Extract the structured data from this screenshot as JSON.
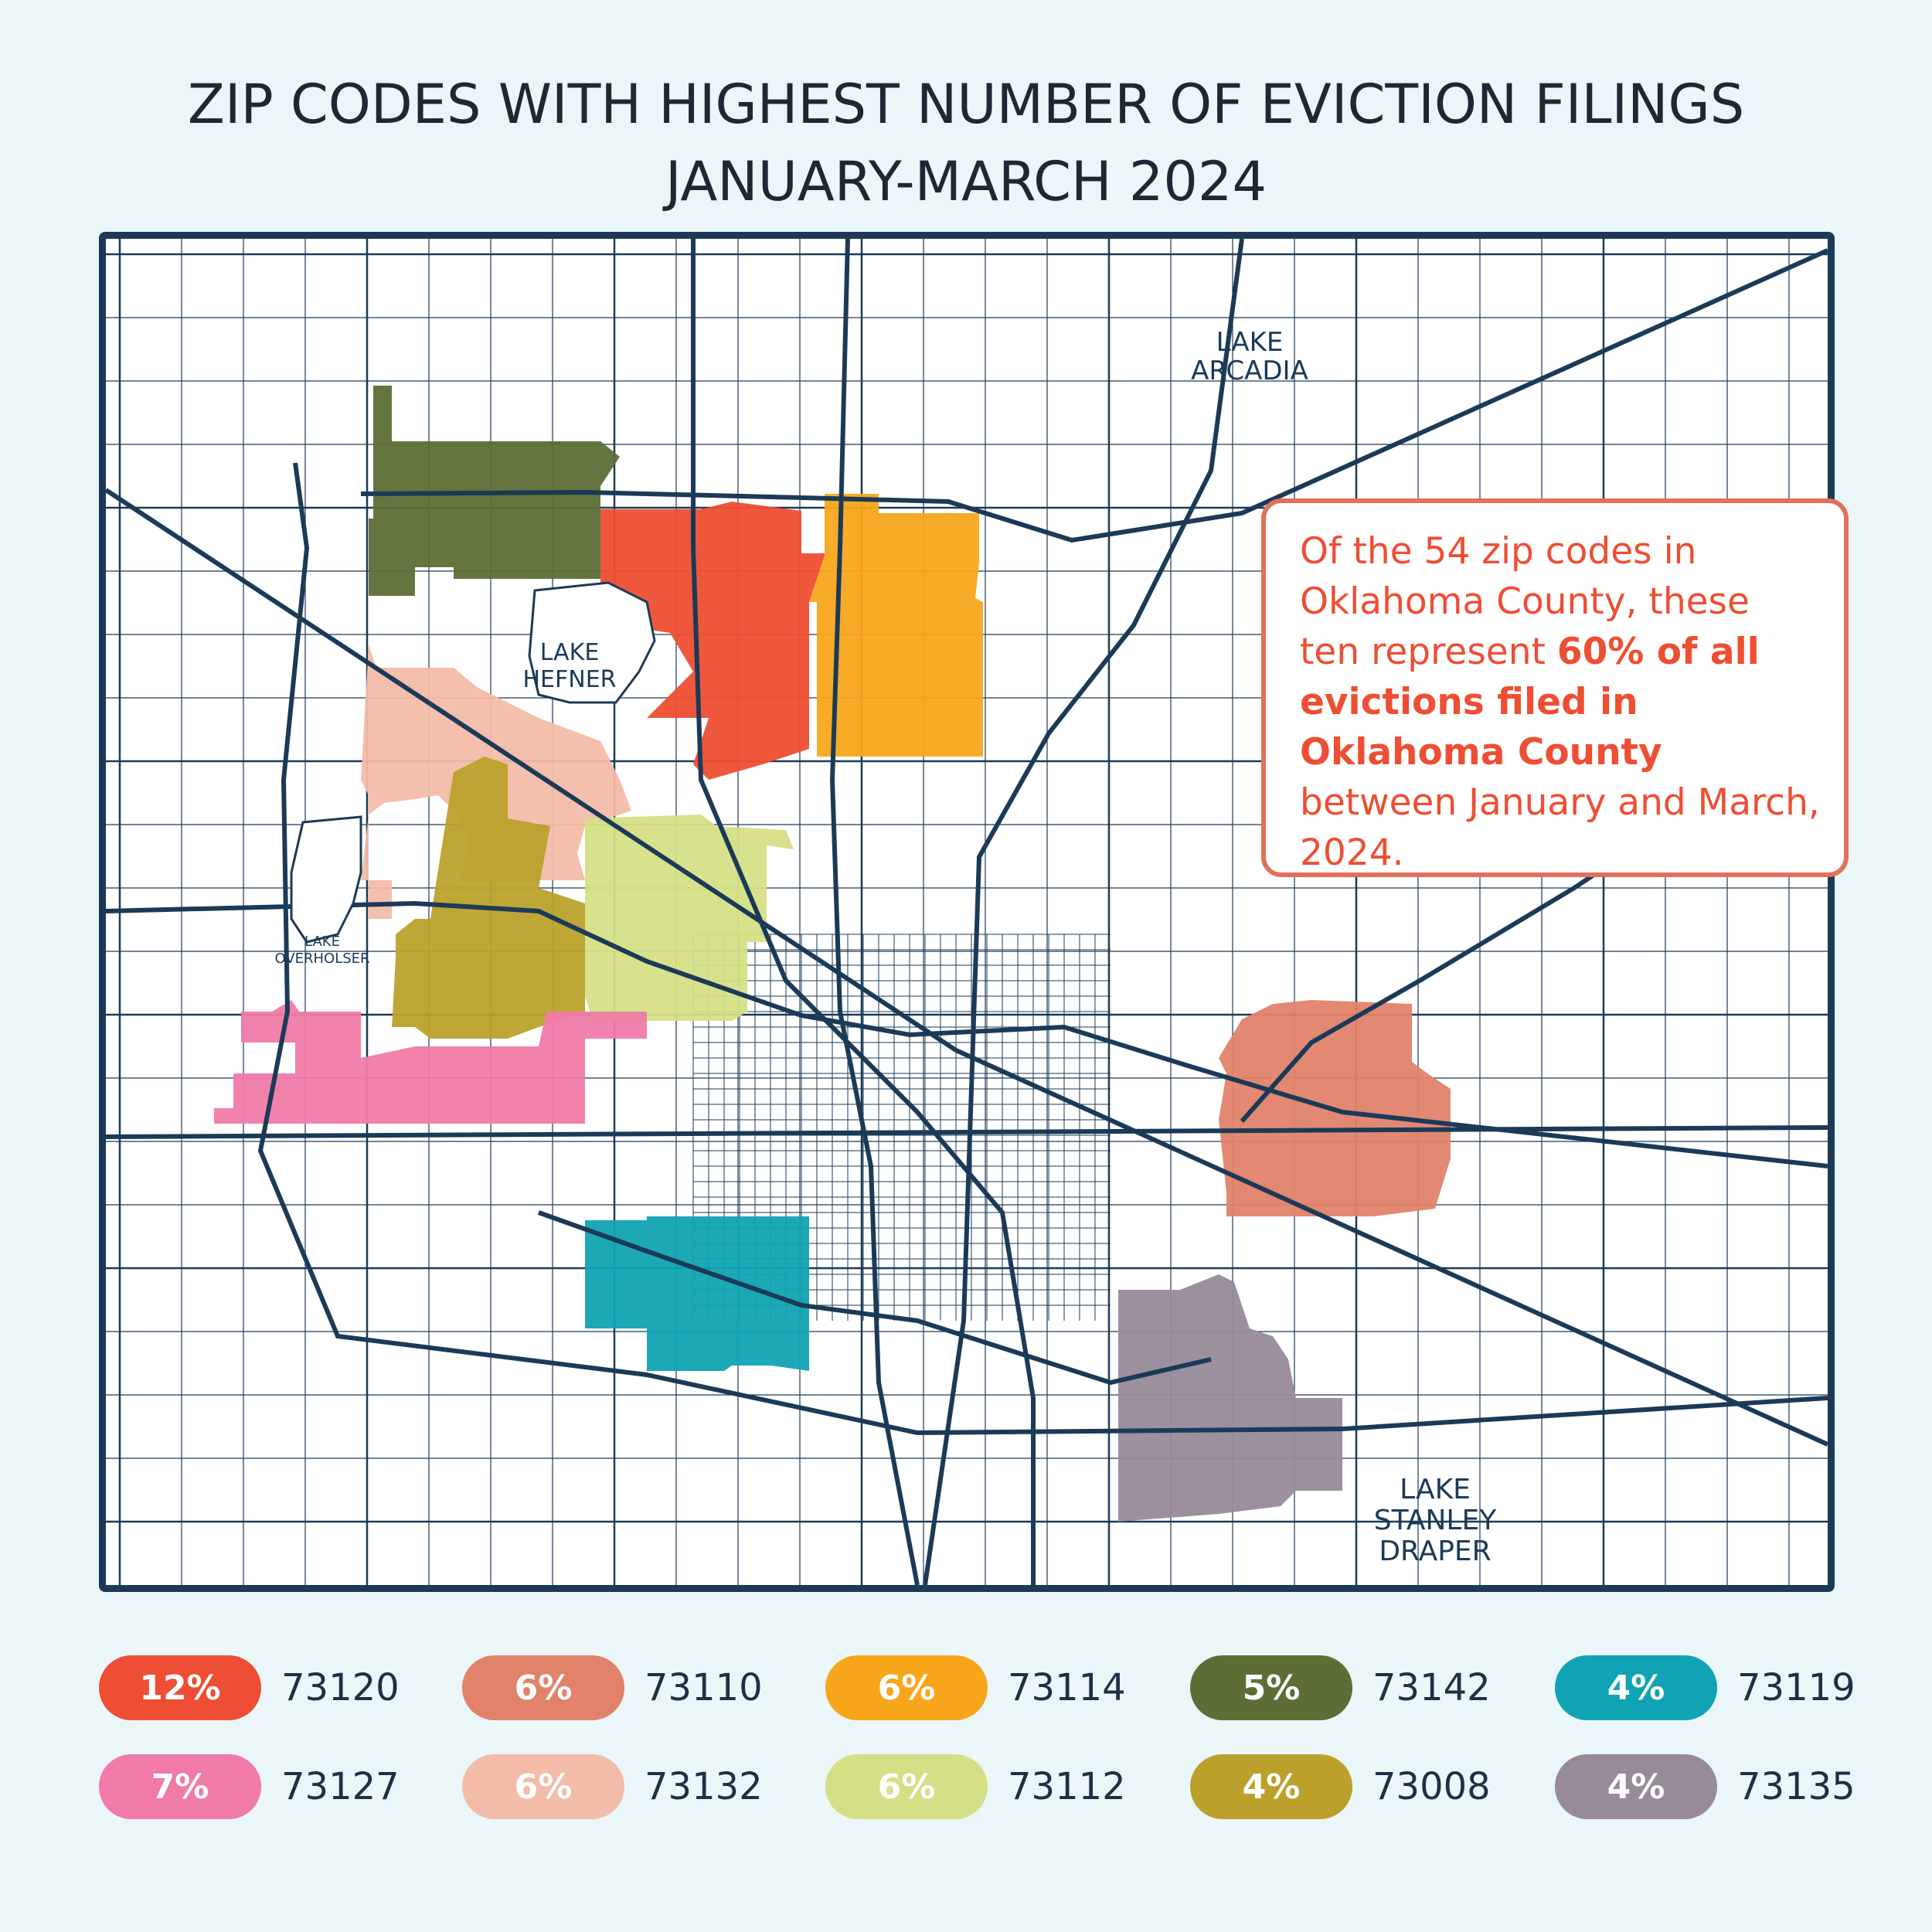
{
  "title": {
    "line1": "ZIP CODES WITH HIGHEST NUMBER OF EVICTION FILINGS",
    "line2": "JANUARY-MARCH 2024"
  },
  "map": {
    "labels": {
      "lake_arcadia_1": "LAKE",
      "lake_arcadia_2": "ARCADIA",
      "lake_hefner_1": "LAKE",
      "lake_hefner_2": "HEFNER",
      "lake_overholser_1": "LAKE",
      "lake_overholser_2": "OVERHOLSER",
      "lake_stanley_draper_1": "LAKE",
      "lake_stanley_draper_2": "STANLEY",
      "lake_stanley_draper_3": "DRAPER"
    },
    "road_color": "#1b3a57",
    "zip_regions": [
      "73120",
      "73110",
      "73114",
      "73142",
      "73119",
      "73127",
      "73132",
      "73112",
      "73008",
      "73135"
    ]
  },
  "callout": {
    "part1": "Of the 54 zip codes in Oklahoma County, these ten represent ",
    "bold": "60% of all evictions filed in Oklahoma County",
    "part2": " between January and March, 2024."
  },
  "legend": [
    {
      "pct": "12%",
      "zip": "73120",
      "color": "#ee4e33"
    },
    {
      "pct": "6%",
      "zip": "73110",
      "color": "#e2826a"
    },
    {
      "pct": "6%",
      "zip": "73114",
      "color": "#f7a61b"
    },
    {
      "pct": "5%",
      "zip": "73142",
      "color": "#5c6e35"
    },
    {
      "pct": "4%",
      "zip": "73119",
      "color": "#10a3b3"
    },
    {
      "pct": "7%",
      "zip": "73127",
      "color": "#ef7ba6"
    },
    {
      "pct": "6%",
      "zip": "73132",
      "color": "#f3bca8"
    },
    {
      "pct": "6%",
      "zip": "73112",
      "color": "#d6df85"
    },
    {
      "pct": "4%",
      "zip": "73008",
      "color": "#bba12c"
    },
    {
      "pct": "4%",
      "zip": "73135",
      "color": "#978a99"
    }
  ]
}
